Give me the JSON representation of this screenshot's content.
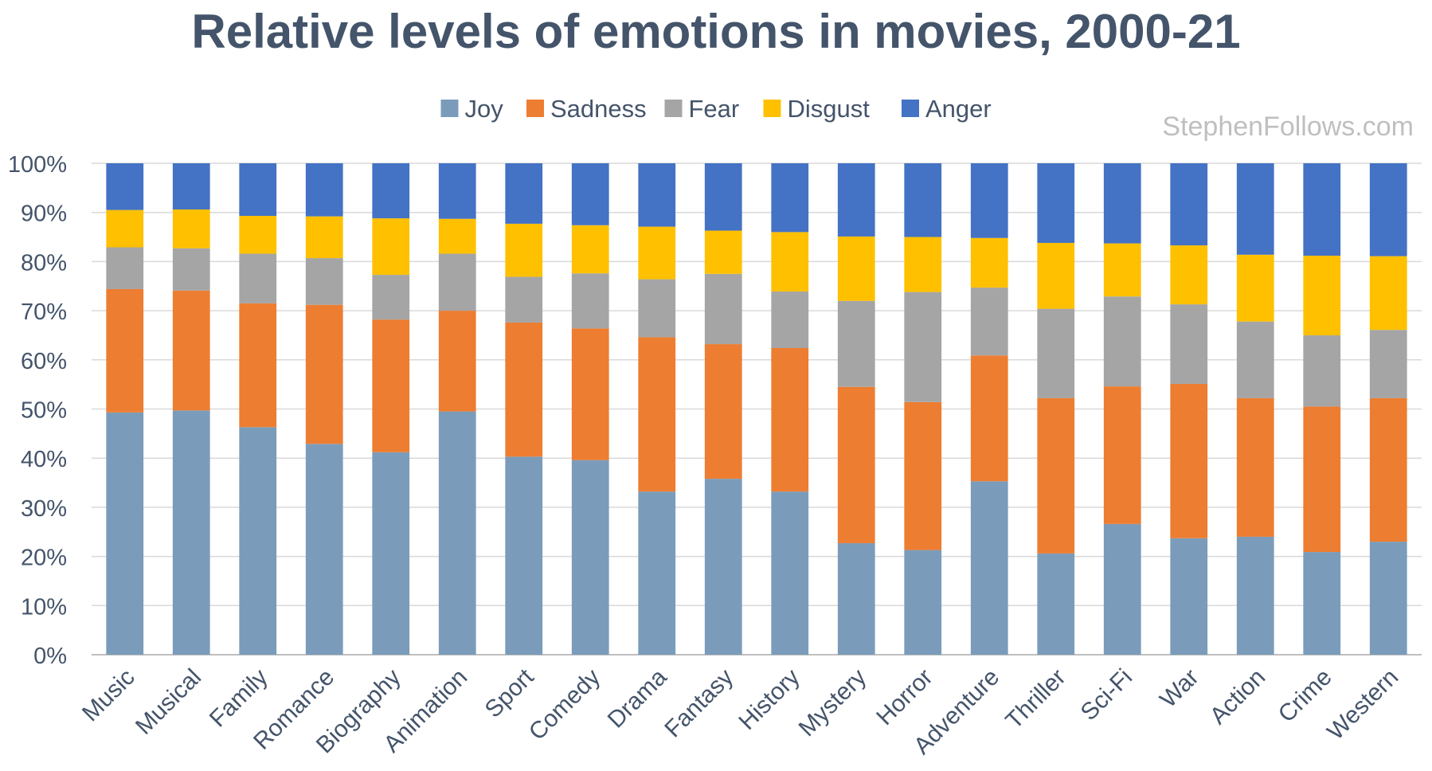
{
  "chart_data": {
    "type": "bar",
    "stacked": true,
    "title": "Relative levels of emotions in movies, 2000-21",
    "watermark": "StephenFollows.com",
    "categories": [
      "Music",
      "Musical",
      "Family",
      "Romance",
      "Biography",
      "Animation",
      "Sport",
      "Comedy",
      "Drama",
      "Fantasy",
      "History",
      "Mystery",
      "Horror",
      "Adventure",
      "Thriller",
      "Sci-Fi",
      "War",
      "Action",
      "Crime",
      "Western"
    ],
    "series": [
      {
        "name": "Joy",
        "color": "#7a9cba",
        "values": [
          49.3,
          49.7,
          46.3,
          42.9,
          41.2,
          49.5,
          40.3,
          39.6,
          33.2,
          35.8,
          33.2,
          22.7,
          21.3,
          35.3,
          20.6,
          26.6,
          23.7,
          24.0,
          20.9,
          23.0
        ]
      },
      {
        "name": "Sadness",
        "color": "#ed7d31",
        "values": [
          25.1,
          24.4,
          25.2,
          28.3,
          27.0,
          20.5,
          27.3,
          26.8,
          31.4,
          27.4,
          29.2,
          31.8,
          30.1,
          25.6,
          31.6,
          28.0,
          31.4,
          28.2,
          29.6,
          29.2
        ]
      },
      {
        "name": "Fear",
        "color": "#a5a5a5",
        "values": [
          8.5,
          8.6,
          10.1,
          9.5,
          9.1,
          11.6,
          9.3,
          11.2,
          11.8,
          14.3,
          11.5,
          17.5,
          22.4,
          13.8,
          18.2,
          18.3,
          16.2,
          15.6,
          14.5,
          13.9
        ]
      },
      {
        "name": "Disgust",
        "color": "#ffc000",
        "values": [
          7.6,
          7.9,
          7.7,
          8.5,
          11.5,
          7.1,
          10.8,
          9.8,
          10.7,
          8.8,
          12.1,
          13.1,
          11.2,
          10.1,
          13.4,
          10.8,
          12.0,
          13.6,
          16.2,
          15.0
        ]
      },
      {
        "name": "Anger",
        "color": "#4472c4",
        "values": [
          9.5,
          9.4,
          10.7,
          10.8,
          11.2,
          11.3,
          12.3,
          12.6,
          12.9,
          13.7,
          14.0,
          14.9,
          15.0,
          15.2,
          16.2,
          16.3,
          16.7,
          18.6,
          18.8,
          18.9
        ]
      }
    ],
    "ylim": [
      0,
      100
    ],
    "yticks": [
      "0%",
      "10%",
      "20%",
      "30%",
      "40%",
      "50%",
      "60%",
      "70%",
      "80%",
      "90%",
      "100%"
    ],
    "grid": true,
    "legend_position": "top"
  }
}
